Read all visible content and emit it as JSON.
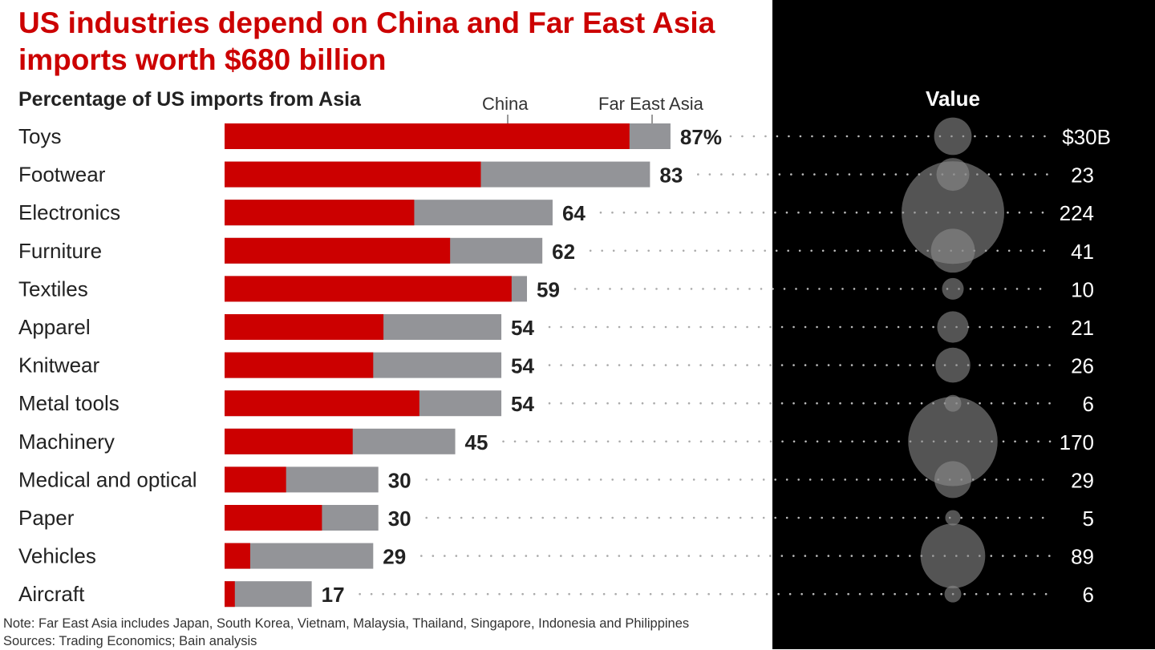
{
  "title": "US industries depend on China and Far East Asia imports worth $680 billion",
  "subtitle": "Percentage of US imports from Asia",
  "note": "Note: Far East Asia includes Japan, South Korea, Vietnam, Malaysia, Thailand, Singapore, Indonesia and Philippines",
  "sources": "Sources: Trading Economics; Bain analysis",
  "colors": {
    "china": "#cc0000",
    "far_east_asia": "#939498",
    "bubble": "#8c8c8c",
    "panel": "#000000"
  },
  "chart_data": [
    {
      "type": "bar",
      "stacked": true,
      "orientation": "horizontal",
      "title": "Percentage of US imports from Asia",
      "categories": [
        "Toys",
        "Footwear",
        "Electronics",
        "Furniture",
        "Textiles",
        "Apparel",
        "Knitwear",
        "Metal tools",
        "Machinery",
        "Medical and optical",
        "Paper",
        "Vehicles",
        "Aircraft"
      ],
      "series": [
        {
          "name": "China",
          "values": [
            79,
            50,
            37,
            44,
            56,
            31,
            29,
            38,
            25,
            12,
            19,
            5,
            2
          ]
        },
        {
          "name": "Far East Asia",
          "values": [
            8,
            33,
            27,
            18,
            3,
            23,
            25,
            16,
            20,
            18,
            11,
            24,
            15
          ]
        }
      ],
      "totals": [
        87,
        83,
        64,
        62,
        59,
        54,
        54,
        54,
        45,
        30,
        30,
        29,
        17
      ],
      "total_labels": [
        "87%",
        "83",
        "64",
        "62",
        "59",
        "54",
        "54",
        "54",
        "45",
        "30",
        "30",
        "29",
        "17"
      ],
      "xlim": [
        0,
        100
      ]
    },
    {
      "type": "bubble",
      "title": "Value",
      "unit": "$B",
      "categories": [
        "Toys",
        "Footwear",
        "Electronics",
        "Furniture",
        "Textiles",
        "Apparel",
        "Knitwear",
        "Metal tools",
        "Machinery",
        "Medical and optical",
        "Paper",
        "Vehicles",
        "Aircraft"
      ],
      "values": [
        30,
        23,
        224,
        41,
        10,
        21,
        26,
        6,
        170,
        29,
        5,
        89,
        6
      ],
      "value_labels": [
        "$30B",
        "23",
        "224",
        "41",
        "10",
        "21",
        "26",
        "6",
        "170",
        "29",
        "5",
        "89",
        "6"
      ]
    }
  ]
}
